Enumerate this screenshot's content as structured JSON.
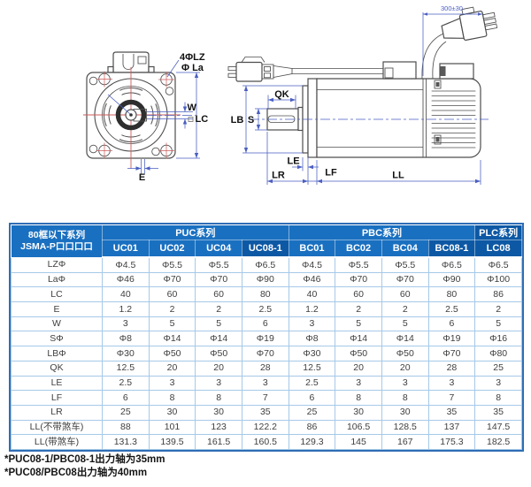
{
  "diagram": {
    "labels": {
      "holes": "4ΦLZ",
      "la": "Φ La",
      "w": "W",
      "lc": "LC",
      "e": "E",
      "qk": "QK",
      "s": "S",
      "lb": "LB",
      "le": "LE",
      "lr": "LR",
      "lf": "LF",
      "ll": "LL",
      "cable": "300±30"
    },
    "colors": {
      "outline": "#4d4d4d",
      "dimension": "#4a5fc1",
      "centerline": "#cc5b5b"
    }
  },
  "table": {
    "corner": {
      "line1": "80框以下系列",
      "line2": "JSMA-P口口口口"
    },
    "groups": [
      {
        "label": "PUC系列",
        "span": 4,
        "highlight": false
      },
      {
        "label": "PBC系列",
        "span": 4,
        "highlight": false
      },
      {
        "label": "PLC系列",
        "span": 1,
        "highlight": true
      }
    ],
    "models": [
      "UC01",
      "UC02",
      "UC04",
      "UC08-1",
      "BC01",
      "BC02",
      "BC04",
      "BC08-1",
      "LC08"
    ],
    "highlight_models": [
      "UC08-1",
      "BC08-1",
      "LC08"
    ],
    "rows": [
      {
        "label": "LZΦ",
        "values": [
          "Φ4.5",
          "Φ5.5",
          "Φ5.5",
          "Φ6.5",
          "Φ4.5",
          "Φ5.5",
          "Φ5.5",
          "Φ6.5",
          "Φ6.5"
        ]
      },
      {
        "label": "LaΦ",
        "values": [
          "Φ46",
          "Φ70",
          "Φ70",
          "Φ90",
          "Φ46",
          "Φ70",
          "Φ70",
          "Φ90",
          "Φ100"
        ]
      },
      {
        "label": "LC",
        "values": [
          "40",
          "60",
          "60",
          "80",
          "40",
          "60",
          "60",
          "80",
          "86"
        ]
      },
      {
        "label": "E",
        "values": [
          "1.2",
          "2",
          "2",
          "2.5",
          "1.2",
          "2",
          "2",
          "2.5",
          "2"
        ]
      },
      {
        "label": "W",
        "values": [
          "3",
          "5",
          "5",
          "6",
          "3",
          "5",
          "5",
          "6",
          "5"
        ]
      },
      {
        "label": "SΦ",
        "values": [
          "Φ8",
          "Φ14",
          "Φ14",
          "Φ19",
          "Φ8",
          "Φ14",
          "Φ14",
          "Φ19",
          "Φ16"
        ]
      },
      {
        "label": "LBΦ",
        "values": [
          "Φ30",
          "Φ50",
          "Φ50",
          "Φ70",
          "Φ30",
          "Φ50",
          "Φ50",
          "Φ70",
          "Φ80"
        ]
      },
      {
        "label": "QK",
        "values": [
          "12.5",
          "20",
          "20",
          "28",
          "12.5",
          "20",
          "20",
          "28",
          "25"
        ]
      },
      {
        "label": "LE",
        "values": [
          "2.5",
          "3",
          "3",
          "3",
          "2.5",
          "3",
          "3",
          "3",
          "3"
        ]
      },
      {
        "label": "LF",
        "values": [
          "6",
          "8",
          "8",
          "7",
          "6",
          "8",
          "8",
          "7",
          "8"
        ]
      },
      {
        "label": "LR",
        "values": [
          "25",
          "30",
          "30",
          "35",
          "25",
          "30",
          "30",
          "35",
          "35"
        ]
      },
      {
        "label": "LL(不带煞车)",
        "values": [
          "88",
          "101",
          "123",
          "122.2",
          "86",
          "106.5",
          "128.5",
          "137",
          "147.5"
        ]
      },
      {
        "label": "LL(带煞车)",
        "values": [
          "131.3",
          "139.5",
          "161.5",
          "160.5",
          "129.3",
          "145",
          "167",
          "175.3",
          "182.5"
        ]
      }
    ],
    "colors": {
      "header_bg": "#1a70c0",
      "header_highlight_bg": "#0d58a4",
      "grid": "#a6c9e8",
      "outer_border": "#2f6db5",
      "text": "#3f3f3f"
    }
  },
  "footnotes": [
    "*PUC08-1/PBC08-1出力轴为35mm",
    "*PUC08/PBC08出力轴为40mm"
  ]
}
